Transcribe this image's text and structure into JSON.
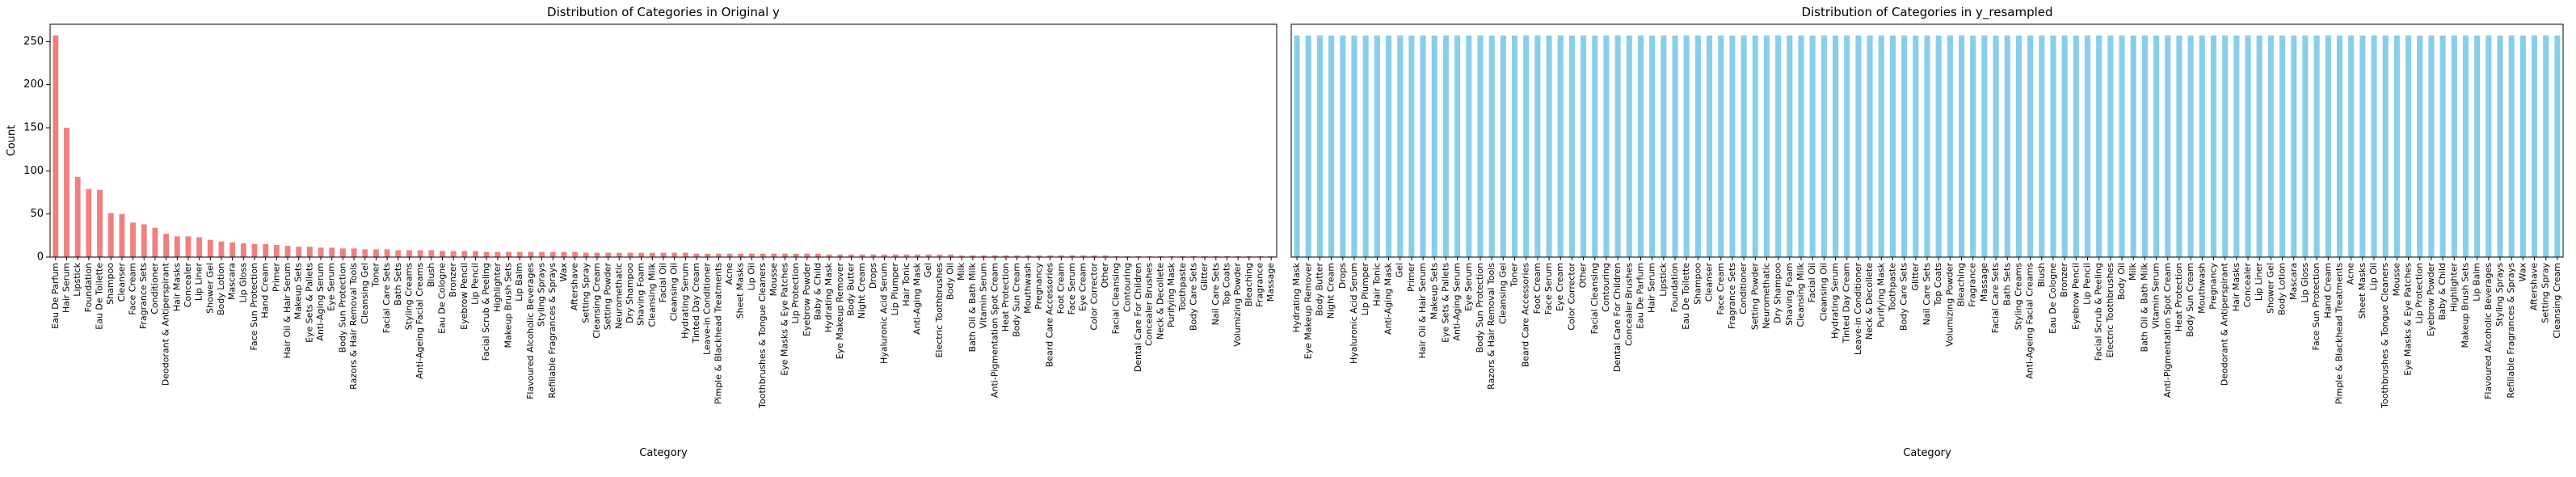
{
  "chart_data": [
    {
      "type": "bar",
      "title": "Distribution of Categories in Original y",
      "xlabel": "Category",
      "ylabel": "Count",
      "color": "#f08080",
      "ylim": [
        0,
        270
      ],
      "yticks": [
        0,
        50,
        100,
        150,
        200,
        250
      ],
      "categories": [
        "Eau De Parfum",
        "Hair Serum",
        "Lipstick",
        "Foundation",
        "Eau De Toilette",
        "Shampoo",
        "Cleanser",
        "Face Cream",
        "Fragrance Sets",
        "Conditioner",
        "Deodorant & Antiperspirant",
        "Hair Masks",
        "Concealer",
        "Lip Liner",
        "Shower Gel",
        "Body Lotion",
        "Mascara",
        "Lip Gloss",
        "Face Sun Protection",
        "Hand Cream",
        "Primer",
        "Hair Oil & Hair Serum",
        "Makeup Sets",
        "Eye Sets & Pallets",
        "Anti-Aging Serum",
        "Eye Serum",
        "Body Sun Protection",
        "Razors & Hair Removal Tools",
        "Cleansing Gel",
        "Toner",
        "Facial Care Sets",
        "Bath Sets",
        "Styling Creams",
        "Anti-Ageing Facial Creams",
        "Blush",
        "Eau De Cologne",
        "Bronzer",
        "Eyebrow Pencil",
        "Lip Pencil",
        "Facial Scrub & Peeling",
        "Highlighter",
        "Makeup Brush Sets",
        "Lip Balm",
        "Flavoured Alcoholic Beverages",
        "Styling Sprays",
        "Refillable Fragrances & Sprays",
        "Wax",
        "Aftershave",
        "Setting Spray",
        "Cleansing Cream",
        "Setting Powder",
        "Neuromethatic",
        "Dry Shampoo",
        "Shaving Foam",
        "Cleansing Milk",
        "Facial Oil",
        "Cleansing Oil",
        "Hydrating Serum",
        "Tinted Day Cream",
        "Leave-in Conditioner",
        "Pimple & Blackhead Treatments",
        "Acne",
        "Sheet Masks",
        "Lip Oil",
        "Toothbrushes & Tongue Cleaners",
        "Mousse",
        "Eye Masks & Eye Patches",
        "Lip Protection",
        "Eyebrow Powder",
        "Baby & Child",
        "Hydrating Mask",
        "Eye Makeup Remover",
        "Body Butter",
        "Night Cream",
        "Drops",
        "Hyaluronic Acid Serum",
        "Lip Plumper",
        "Hair Tonic",
        "Anti-Aging Mask",
        "Gel",
        "Electric Toothbrushes",
        "Body Oil",
        "Milk",
        "Bath Oil & Bath Milk",
        "Vitamin Serum",
        "Anti-Pigmentation Spot Cream",
        "Heat Protection",
        "Body Sun Cream",
        "Mouthwash",
        "Pregnancy",
        "Beard Care Accessories",
        "Foot Cream",
        "Face Serum",
        "Eye Cream",
        "Color Corrector",
        "Other",
        "Facial Cleansing",
        "Contouring",
        "Dental Care For Children",
        "Concealer Brushes",
        "Neck & Decollete",
        "Purifying Mask",
        "Toothpaste",
        "Body Care Sets",
        "Glitter",
        "Nail Care Sets",
        "Top Coats",
        "Volumizing Powder",
        "Bleaching",
        "Fragrance",
        "Massage"
      ],
      "values": [
        257,
        150,
        93,
        79,
        78,
        51,
        50,
        40,
        38,
        34,
        27,
        24,
        24,
        23,
        20,
        18,
        17,
        16,
        15,
        15,
        14,
        13,
        12,
        12,
        11,
        11,
        10,
        10,
        9,
        9,
        9,
        8,
        8,
        8,
        8,
        7,
        7,
        7,
        7,
        6,
        6,
        6,
        6,
        6,
        6,
        6,
        6,
        6,
        5,
        5,
        5,
        5,
        5,
        5,
        5,
        5,
        5,
        5,
        4,
        4,
        4,
        4,
        4,
        4,
        4,
        4,
        4,
        4,
        4,
        4,
        3,
        3,
        3,
        3,
        3,
        3,
        3,
        3,
        3,
        3,
        3,
        3,
        2,
        2,
        2,
        2,
        2,
        2,
        2,
        2,
        2,
        2,
        2,
        2,
        2,
        2,
        1,
        1,
        1,
        1,
        1,
        1,
        1,
        1,
        1,
        1,
        1,
        1,
        1,
        1,
        1
      ]
    },
    {
      "type": "bar",
      "title": "Distribution of Categories in y_resampled",
      "xlabel": "Category",
      "color": "#87ceeb",
      "ylim": [
        0,
        270
      ],
      "categories": [
        "Hydrating Mask",
        "Eye Makeup Remover",
        "Body Butter",
        "Night Cream",
        "Drops",
        "Hyaluronic Acid Serum",
        "Lip Plumper",
        "Hair Tonic",
        "Anti-Aging Mask",
        "Gel",
        "Primer",
        "Hair Oil & Hair Serum",
        "Makeup Sets",
        "Eye Sets & Pallets",
        "Anti-Aging Serum",
        "Eye Serum",
        "Body Sun Protection",
        "Razors & Hair Removal Tools",
        "Cleansing Gel",
        "Toner",
        "Beard Care Accessories",
        "Foot Cream",
        "Face Serum",
        "Eye Cream",
        "Color Corrector",
        "Other",
        "Facial Cleansing",
        "Contouring",
        "Dental Care For Children",
        "Concealer Brushes",
        "Eau De Parfum",
        "Hair Serum",
        "Lipstick",
        "Foundation",
        "Eau De Toilette",
        "Shampoo",
        "Cleanser",
        "Face Cream",
        "Fragrance Sets",
        "Conditioner",
        "Setting Powder",
        "Neuromethatic",
        "Dry Shampoo",
        "Shaving Foam",
        "Cleansing Milk",
        "Facial Oil",
        "Cleansing Oil",
        "Hydrating Serum",
        "Tinted Day Cream",
        "Leave-in Conditioner",
        "Neck & Decollete",
        "Purifying Mask",
        "Toothpaste",
        "Body Care Sets",
        "Glitter",
        "Nail Care Sets",
        "Top Coats",
        "Volumizing Powder",
        "Bleaching",
        "Fragrance",
        "Massage",
        "Facial Care Sets",
        "Bath Sets",
        "Styling Creams",
        "Anti-Ageing Facial Creams",
        "Blush",
        "Eau De Cologne",
        "Bronzer",
        "Eyebrow Pencil",
        "Lip Pencil",
        "Facial Scrub & Peeling",
        "Electric Toothbrushes",
        "Body Oil",
        "Milk",
        "Bath Oil & Bath Milk",
        "Vitamin Serum",
        "Anti-Pigmentation Spot Cream",
        "Heat Protection",
        "Body Sun Cream",
        "Mouthwash",
        "Pregnancy",
        "Deodorant & Antiperspirant",
        "Hair Masks",
        "Concealer",
        "Lip Liner",
        "Shower Gel",
        "Body Lotion",
        "Mascara",
        "Lip Gloss",
        "Face Sun Protection",
        "Hand Cream",
        "Pimple & Blackhead Treatments",
        "Acne",
        "Sheet Masks",
        "Lip Oil",
        "Toothbrushes & Tongue Cleaners",
        "Mousse",
        "Eye Masks & Eye Patches",
        "Lip Protection",
        "Eyebrow Powder",
        "Baby & Child",
        "Highlighter",
        "Makeup Brush Sets",
        "Lip Balm",
        "Flavoured Alcoholic Beverages",
        "Styling Sprays",
        "Refillable Fragrances & Sprays",
        "Wax",
        "Aftershave",
        "Setting Spray",
        "Cleansing Cream"
      ],
      "values": [
        257,
        257,
        257,
        257,
        257,
        257,
        257,
        257,
        257,
        257,
        257,
        257,
        257,
        257,
        257,
        257,
        257,
        257,
        257,
        257,
        257,
        257,
        257,
        257,
        257,
        257,
        257,
        257,
        257,
        257,
        257,
        257,
        257,
        257,
        257,
        257,
        257,
        257,
        257,
        257,
        257,
        257,
        257,
        257,
        257,
        257,
        257,
        257,
        257,
        257,
        257,
        257,
        257,
        257,
        257,
        257,
        257,
        257,
        257,
        257,
        257,
        257,
        257,
        257,
        257,
        257,
        257,
        257,
        257,
        257,
        257,
        257,
        257,
        257,
        257,
        257,
        257,
        257,
        257,
        257,
        257,
        257,
        257,
        257,
        257,
        257,
        257,
        257,
        257,
        257,
        257,
        257,
        257,
        257,
        257,
        257,
        257,
        257,
        257,
        257,
        257,
        257,
        257,
        257,
        257,
        257,
        257,
        257,
        257,
        257,
        257
      ]
    }
  ]
}
